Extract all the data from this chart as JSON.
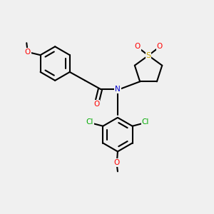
{
  "bg_color": "#f0f0f0",
  "black": "#000000",
  "red": "#ff0000",
  "green": "#00aa00",
  "blue": "#0000cc",
  "sulfur_yellow": "#ccaa00",
  "bond_lw": 1.5,
  "figsize": [
    3.0,
    3.0
  ],
  "dpi": 100,
  "xlim": [
    0,
    10
  ],
  "ylim": [
    0,
    10
  ]
}
